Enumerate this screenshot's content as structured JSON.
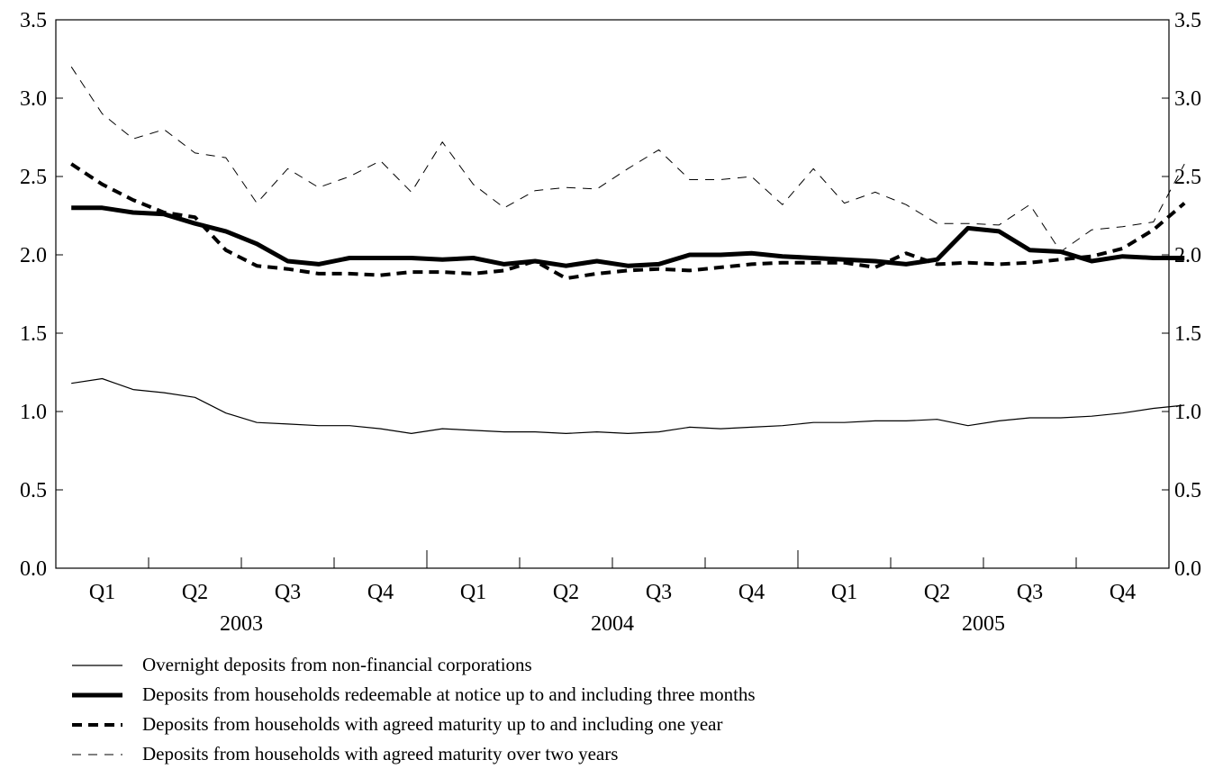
{
  "chart_data": {
    "type": "line",
    "yticks": [
      "0.0",
      "0.5",
      "1.0",
      "1.5",
      "2.0",
      "2.5",
      "3.0",
      "3.5"
    ],
    "ylim": [
      0,
      3.5
    ],
    "quarters": [
      "Q1",
      "Q2",
      "Q3",
      "Q4",
      "Q1",
      "Q2",
      "Q3",
      "Q4",
      "Q1",
      "Q2",
      "Q3",
      "Q4"
    ],
    "years": [
      "2003",
      "2004",
      "2005"
    ],
    "months_per_year": 12,
    "series": [
      {
        "name": "Overnight deposits from non-financial corporations",
        "style": "thin-solid",
        "values": [
          1.18,
          1.21,
          1.14,
          1.12,
          1.09,
          0.99,
          0.93,
          0.92,
          0.91,
          0.91,
          0.89,
          0.86,
          0.89,
          0.88,
          0.87,
          0.87,
          0.86,
          0.87,
          0.86,
          0.87,
          0.9,
          0.89,
          0.9,
          0.91,
          0.93,
          0.93,
          0.94,
          0.94,
          0.95,
          0.91,
          0.94,
          0.96,
          0.96,
          0.97,
          0.99,
          1.02,
          1.04
        ]
      },
      {
        "name": "Deposits from households redeemable at notice up to and including three months",
        "style": "thick-solid",
        "values": [
          2.3,
          2.3,
          2.27,
          2.26,
          2.2,
          2.15,
          2.07,
          1.96,
          1.94,
          1.98,
          1.98,
          1.98,
          1.97,
          1.98,
          1.94,
          1.96,
          1.93,
          1.96,
          1.93,
          1.94,
          2.0,
          2.0,
          2.01,
          1.99,
          1.98,
          1.97,
          1.96,
          1.94,
          1.97,
          2.17,
          2.15,
          2.03,
          2.02,
          1.96,
          1.99,
          1.98,
          1.98
        ]
      },
      {
        "name": "Deposits from households with agreed maturity up to and including one year",
        "style": "thick-dashed",
        "values": [
          2.58,
          2.45,
          2.35,
          2.27,
          2.24,
          2.03,
          1.93,
          1.91,
          1.88,
          1.88,
          1.87,
          1.89,
          1.89,
          1.88,
          1.9,
          1.96,
          1.85,
          1.88,
          1.9,
          1.91,
          1.9,
          1.92,
          1.94,
          1.95,
          1.95,
          1.95,
          1.92,
          2.01,
          1.94,
          1.95,
          1.94,
          1.95,
          1.97,
          1.99,
          2.04,
          2.16,
          2.33
        ]
      },
      {
        "name": "Deposits from households with agreed maturity over two years",
        "style": "thin-dashed",
        "values": [
          3.2,
          2.9,
          2.74,
          2.8,
          2.65,
          2.62,
          2.33,
          2.55,
          2.43,
          2.5,
          2.6,
          2.4,
          2.72,
          2.45,
          2.3,
          2.41,
          2.43,
          2.42,
          2.55,
          2.67,
          2.48,
          2.48,
          2.5,
          2.32,
          2.55,
          2.33,
          2.4,
          2.32,
          2.2,
          2.2,
          2.19,
          2.32,
          2.02,
          2.16,
          2.18,
          2.21,
          2.58
        ]
      }
    ]
  }
}
